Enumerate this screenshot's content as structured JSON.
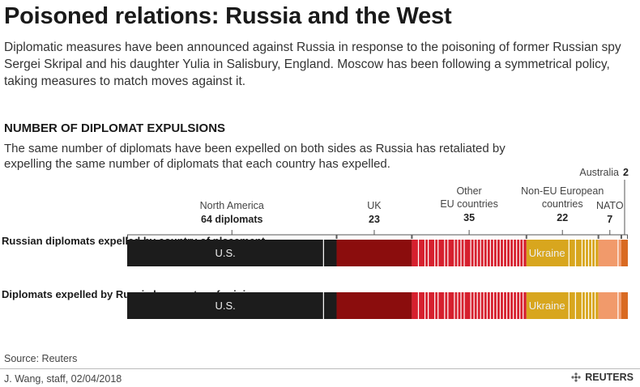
{
  "header": {
    "title": "Poisoned relations: Russia and the West",
    "intro": "Diplomatic measures have been announced against Russia in response to the poisoning of former Russian spy Sergei Skripal and his daughter Yulia in Salisbury, England. Moscow has been following a symmetrical policy, taking measures to match moves against it."
  },
  "section": {
    "heading": "NUMBER OF DIPLOMAT EXPULSIONS",
    "text": "The same number of diplomats have been expelled on both sides as Russia has retaliated by expelling the same number of diplomats that each country has expelled."
  },
  "rows": [
    "Russian diplomats expelled by country of placement",
    "Diplomats expelled by Russia by country of origin"
  ],
  "colors": {
    "north_america": "#1c1c1c",
    "uk": "#8b0d0d",
    "other_eu": "#d6202e",
    "non_eu": "#d8a61e",
    "nato": "#f19a6b",
    "australia": "#d96a22"
  },
  "chart_data": {
    "type": "bar",
    "stacked": true,
    "orientation": "horizontal",
    "categories": [
      "North America",
      "UK",
      "Other EU countries",
      "Non-EU European countries",
      "NATO",
      "Australia"
    ],
    "category_labels": [
      {
        "name": "North America",
        "value_label": "64 diplomats"
      },
      {
        "name": "UK",
        "value_label": "23"
      },
      {
        "name": "Other\nEU countries",
        "value_label": "35"
      },
      {
        "name": "Non-EU European\ncountries",
        "value_label": "22"
      },
      {
        "name": "NATO",
        "value_label": "7"
      },
      {
        "name": "Australia",
        "value_label": "2"
      }
    ],
    "series": [
      {
        "name": "Russian diplomats expelled by country of placement",
        "values": [
          64,
          23,
          35,
          22,
          7,
          2
        ]
      },
      {
        "name": "Diplomats expelled by Russia by country of origin",
        "values": [
          64,
          23,
          35,
          22,
          7,
          2
        ]
      }
    ],
    "segment_labels": {
      "North America": "U.S.",
      "Non-EU European countries": "Ukraine"
    },
    "segment_label_values": {
      "U.S.": 60,
      "Ukraine": 13
    },
    "total": 153
  },
  "footer": {
    "source": "Source: Reuters",
    "byline": "J. Wang, staff,  02/04/2018",
    "brand": "REUTERS"
  }
}
